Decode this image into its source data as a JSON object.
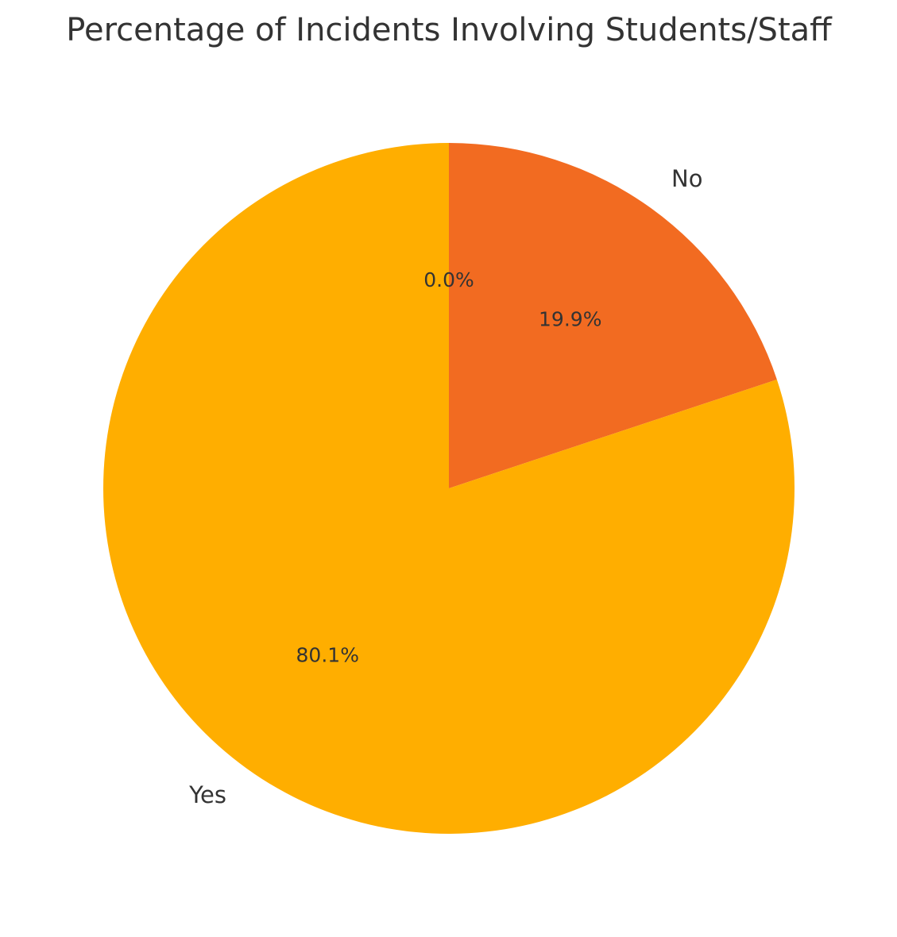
{
  "chart_data": {
    "type": "pie",
    "title": "Percentage of Incidents Involving Students/Staff",
    "categories": [
      null,
      "No",
      "Yes"
    ],
    "values": [
      0,
      19.9,
      80.1
    ],
    "value_labels": [
      "0.0%",
      "19.9%",
      "80.1%"
    ],
    "colors": [
      "#E8414B",
      "#F26B21",
      "#FFAE00"
    ],
    "start_angle": 90,
    "clockwise": true
  }
}
